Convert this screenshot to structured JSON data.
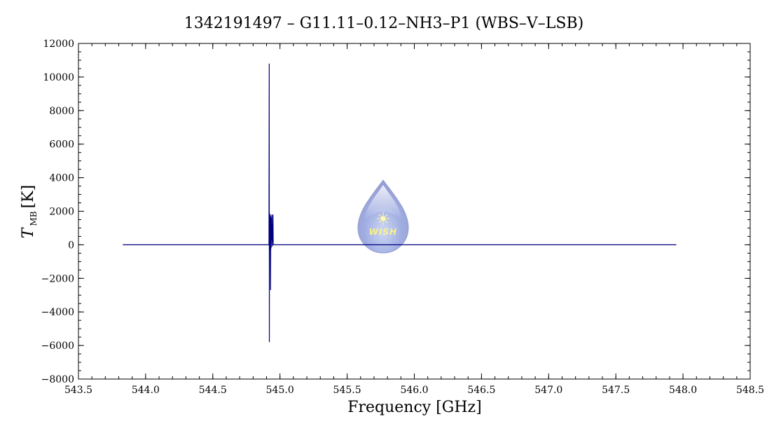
{
  "chart_data": {
    "type": "line",
    "title": "1342191497 – G11.11–0.12–NH3–P1 (WBS–V–LSB)",
    "xlabel": "Frequency [GHz]",
    "ylabel_main": "T",
    "ylabel_sub": "MB",
    "ylabel_unit": "[K]",
    "xlim": [
      543.5,
      548.5
    ],
    "ylim": [
      -8000,
      12000
    ],
    "x_ticks": [
      543.5,
      544.0,
      544.5,
      545.0,
      545.5,
      546.0,
      546.5,
      547.0,
      547.5,
      548.0,
      548.5
    ],
    "x_tick_labels": [
      "543.5",
      "544.0",
      "544.5",
      "545.0",
      "545.5",
      "546.0",
      "546.5",
      "547.0",
      "547.5",
      "548.0",
      "548.5"
    ],
    "y_ticks": [
      -8000,
      -6000,
      -4000,
      -2000,
      0,
      2000,
      4000,
      6000,
      8000,
      10000,
      12000
    ],
    "y_tick_labels": [
      "−8000",
      "−6000",
      "−4000",
      "−2000",
      "0",
      "2000",
      "4000",
      "6000",
      "8000",
      "10000",
      "12000"
    ],
    "grid": false,
    "series": [
      {
        "color": "#00007f",
        "x": [
          543.83,
          544.9,
          544.918,
          544.92,
          544.921,
          544.922,
          544.924,
          544.926,
          544.928,
          544.93,
          544.932,
          544.934,
          544.936,
          544.938,
          544.94,
          544.942,
          544.944,
          544.946,
          544.948,
          544.95,
          544.96,
          547.95
        ],
        "y": [
          0,
          0,
          0,
          10800,
          -5800,
          1900,
          -300,
          800,
          1800,
          -2700,
          1700,
          -200,
          1600,
          300,
          1800,
          -100,
          1200,
          200,
          1800,
          0,
          0,
          0
        ]
      }
    ],
    "logo": {
      "text": "WISH",
      "semantic": "wish-logo-droplet"
    }
  }
}
